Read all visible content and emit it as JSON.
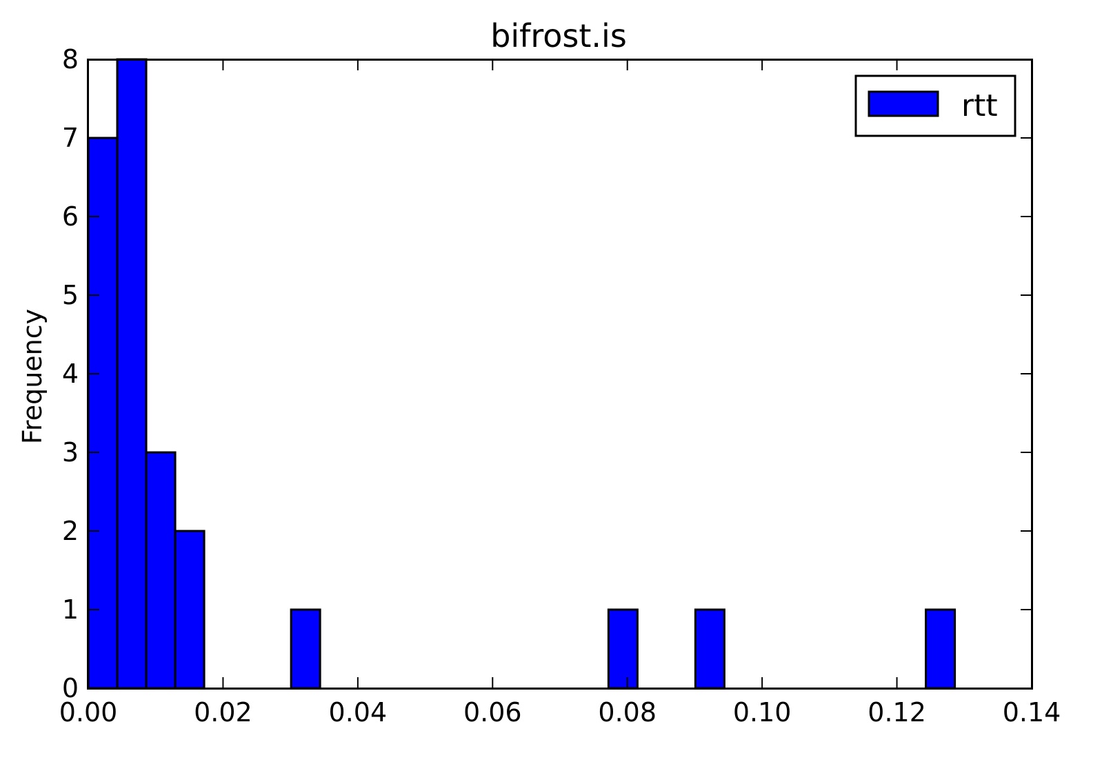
{
  "chart_data": {
    "type": "bar",
    "title": "bifrost.is",
    "xlabel": "",
    "ylabel": "Frequency",
    "xlim": [
      0.0,
      0.14
    ],
    "ylim": [
      0,
      8
    ],
    "x_ticks": [
      "0.00",
      "0.02",
      "0.04",
      "0.06",
      "0.08",
      "0.10",
      "0.12",
      "0.14"
    ],
    "x_tick_values": [
      0.0,
      0.02,
      0.04,
      0.06,
      0.08,
      0.1,
      0.12,
      0.14
    ],
    "y_ticks": [
      "0",
      "1",
      "2",
      "3",
      "4",
      "5",
      "6",
      "7",
      "8"
    ],
    "y_tick_values": [
      0,
      1,
      2,
      3,
      4,
      5,
      6,
      7,
      8
    ],
    "grid": false,
    "legend": {
      "position": "top-right",
      "entries": [
        "rtt"
      ]
    },
    "series": [
      {
        "name": "rtt",
        "color": "#0000ff",
        "bin_width": 0.0043,
        "bins": [
          {
            "start": 0.0,
            "count": 7
          },
          {
            "start": 0.0043,
            "count": 8
          },
          {
            "start": 0.0086,
            "count": 3
          },
          {
            "start": 0.0129,
            "count": 2
          },
          {
            "start": 0.0301,
            "count": 1
          },
          {
            "start": 0.0772,
            "count": 1
          },
          {
            "start": 0.0901,
            "count": 1
          },
          {
            "start": 0.1243,
            "count": 1
          }
        ]
      }
    ]
  }
}
